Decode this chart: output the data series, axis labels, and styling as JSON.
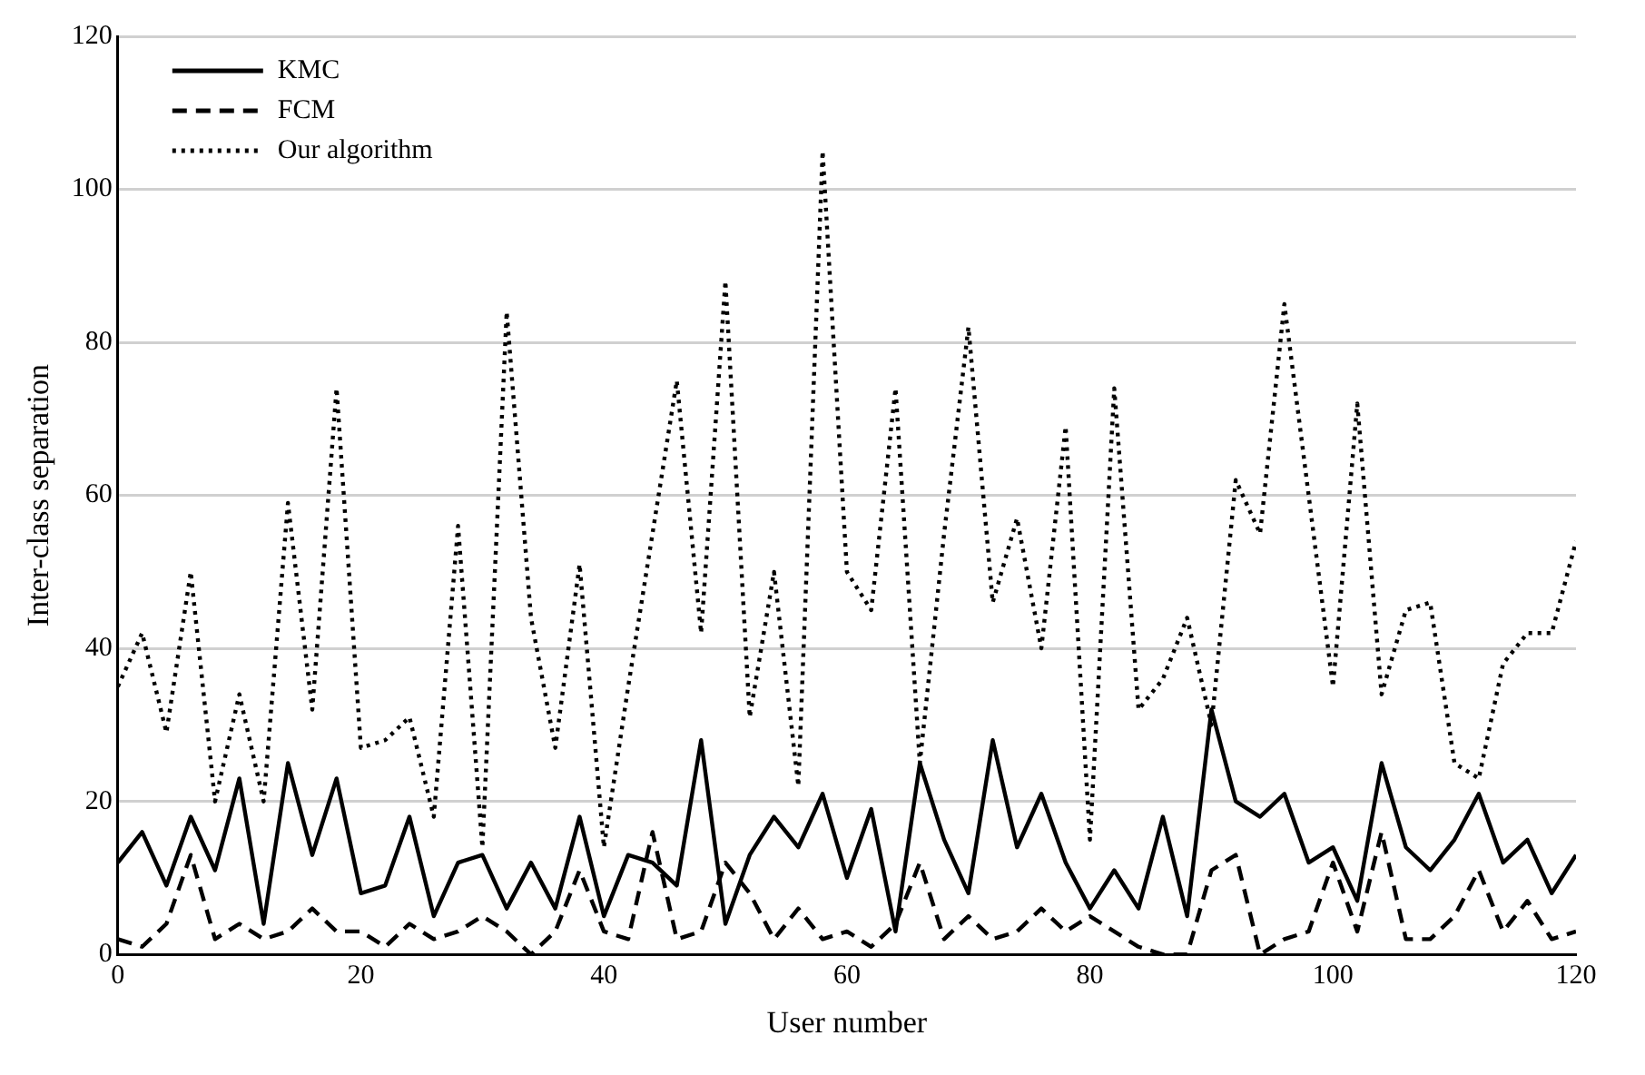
{
  "chart_data": {
    "type": "line",
    "xlabel": "User number",
    "ylabel": "Inter-class separation",
    "x": [
      0,
      2,
      4,
      6,
      8,
      10,
      12,
      14,
      16,
      18,
      20,
      22,
      24,
      26,
      28,
      30,
      32,
      34,
      36,
      38,
      40,
      42,
      44,
      46,
      48,
      50,
      52,
      54,
      56,
      58,
      60,
      62,
      64,
      66,
      68,
      70,
      72,
      74,
      76,
      78,
      80,
      82,
      84,
      86,
      88,
      90,
      92,
      94,
      96,
      98,
      100,
      102,
      104,
      106,
      108,
      110,
      112,
      114,
      116,
      118,
      120
    ],
    "xlim": [
      0,
      120
    ],
    "xticks": [
      0,
      20,
      40,
      60,
      80,
      100,
      120
    ],
    "ylim": [
      0,
      120
    ],
    "yticks": [
      0,
      20,
      40,
      60,
      80,
      100,
      120
    ],
    "grid": "y",
    "legend": "top left",
    "marker": "none",
    "series": [
      {
        "name": "KMC",
        "color": "#000000",
        "line_style": "solid",
        "values": [
          12,
          16,
          9,
          18,
          11,
          23,
          4,
          25,
          13,
          23,
          8,
          9,
          18,
          5,
          12,
          13,
          6,
          12,
          6,
          18,
          5,
          13,
          12,
          9,
          28,
          4,
          13,
          18,
          14,
          21,
          10,
          19,
          3,
          25,
          15,
          8,
          28,
          14,
          21,
          12,
          6,
          11,
          6,
          18,
          5,
          32,
          20,
          18,
          21,
          12,
          14,
          7,
          25,
          14,
          11,
          15,
          21,
          12,
          15,
          8,
          13
        ]
      },
      {
        "name": "FCM",
        "color": "#000000",
        "line_style": "dashed",
        "values": [
          2,
          1,
          4,
          13,
          2,
          4,
          2,
          3,
          6,
          3,
          3,
          1,
          4,
          2,
          3,
          5,
          3,
          0,
          3,
          11,
          3,
          2,
          16,
          2,
          3,
          12,
          8,
          2,
          6,
          2,
          3,
          1,
          4,
          12,
          2,
          5,
          2,
          3,
          6,
          3,
          5,
          3,
          1,
          0,
          0,
          11,
          13,
          0,
          2,
          3,
          12,
          3,
          16,
          2,
          2,
          5,
          11,
          3,
          7,
          2,
          3
        ]
      },
      {
        "name": "Our algorithm",
        "color": "#000000",
        "line_style": "dotted",
        "values": [
          35,
          42,
          29,
          50,
          20,
          34,
          20,
          59,
          32,
          74,
          27,
          28,
          31,
          18,
          56,
          14,
          84,
          44,
          27,
          51,
          14,
          35,
          55,
          75,
          42,
          88,
          31,
          50,
          22,
          105,
          50,
          45,
          74,
          25,
          55,
          82,
          46,
          57,
          40,
          69,
          15,
          74,
          32,
          36,
          44,
          30,
          62,
          55,
          85,
          60,
          35,
          72,
          34,
          45,
          46,
          25,
          23,
          38,
          42,
          42,
          54
        ]
      }
    ]
  }
}
